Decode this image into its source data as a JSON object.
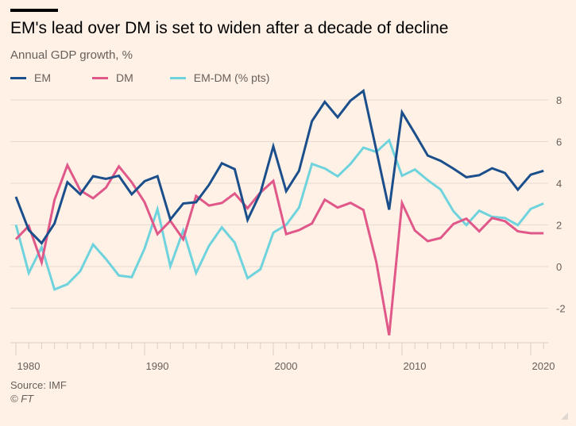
{
  "header": {
    "title": "EM's lead over DM is set to widen after a decade of decline",
    "subtitle": "Annual GDP growth, %"
  },
  "footer": {
    "source": "Source: IMF",
    "copyright": "© FT"
  },
  "colors": {
    "EM": "#1b4f8c",
    "DM": "#e0588a",
    "EM-DM": "#6fd3de",
    "grid": "#e6dbd2",
    "background": "#fff1e5"
  },
  "chart_data": {
    "type": "line",
    "title": "EM's lead over DM is set to widen after a decade of decline",
    "subtitle": "Annual GDP growth, %",
    "xlabel": "",
    "ylabel": "",
    "xlim": [
      1980,
      2021
    ],
    "ylim": [
      -3.5,
      8.5
    ],
    "yticks": [
      8,
      6,
      4,
      2,
      0,
      -2
    ],
    "xticks": [
      1980,
      1990,
      2000,
      2010,
      2020
    ],
    "grid": true,
    "legend_position": "top-left",
    "x": [
      1980,
      1981,
      1982,
      1983,
      1984,
      1985,
      1986,
      1987,
      1988,
      1989,
      1990,
      1991,
      1992,
      1993,
      1994,
      1995,
      1996,
      1997,
      1998,
      1999,
      2000,
      2001,
      2002,
      2003,
      2004,
      2005,
      2006,
      2007,
      2008,
      2009,
      2010,
      2011,
      2012,
      2013,
      2014,
      2015,
      2016,
      2017,
      2018,
      2019,
      2020,
      2021
    ],
    "series": [
      {
        "name": "EM",
        "values": [
          3.35,
          1.75,
          1.12,
          2.07,
          4.05,
          3.47,
          4.34,
          4.21,
          4.36,
          3.47,
          4.1,
          4.34,
          2.26,
          3.03,
          3.09,
          3.92,
          4.96,
          4.68,
          2.24,
          3.54,
          5.77,
          3.62,
          4.6,
          6.98,
          7.91,
          7.17,
          7.97,
          8.44,
          5.6,
          2.73,
          7.41,
          6.39,
          5.33,
          5.08,
          4.7,
          4.29,
          4.39,
          4.72,
          4.49,
          3.69,
          4.41,
          4.6
        ]
      },
      {
        "name": "DM",
        "values": [
          1.31,
          1.95,
          0.2,
          3.2,
          4.87,
          3.66,
          3.28,
          3.79,
          4.81,
          4.05,
          3.09,
          1.56,
          2.2,
          1.31,
          3.39,
          2.93,
          3.05,
          3.51,
          2.8,
          3.56,
          4.11,
          1.56,
          1.75,
          2.07,
          3.21,
          2.83,
          3.06,
          2.72,
          0.23,
          -3.3,
          3.05,
          1.73,
          1.22,
          1.37,
          2.05,
          2.3,
          1.69,
          2.33,
          2.18,
          1.69,
          1.6,
          1.6
        ]
      },
      {
        "name": "EM-DM (% pts)",
        "values": [
          2.01,
          -0.31,
          0.93,
          -1.1,
          -0.85,
          -0.22,
          1.06,
          0.36,
          -0.43,
          -0.51,
          0.87,
          2.75,
          0.01,
          1.73,
          -0.31,
          0.99,
          1.88,
          1.15,
          -0.56,
          -0.13,
          1.63,
          2.0,
          2.83,
          4.93,
          4.71,
          4.33,
          4.93,
          5.71,
          5.5,
          6.07,
          4.36,
          4.66,
          4.15,
          3.7,
          2.65,
          1.99,
          2.68,
          2.39,
          2.33,
          1.99,
          2.77,
          3.03
        ]
      }
    ]
  }
}
